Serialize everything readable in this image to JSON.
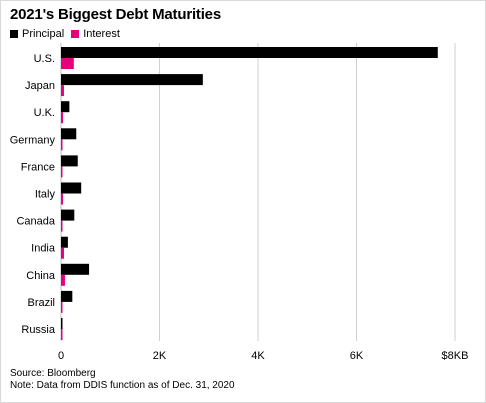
{
  "chart_data": {
    "type": "bar",
    "orientation": "horizontal",
    "title": "2021's Biggest Debt Maturities",
    "categories": [
      "U.S.",
      "Japan",
      "U.K.",
      "Germany",
      "France",
      "Italy",
      "Canada",
      "India",
      "China",
      "Brazil",
      "Russia"
    ],
    "series": [
      {
        "name": "Principal",
        "color": "#000000",
        "values": [
          7650,
          2880,
          170,
          310,
          340,
          410,
          270,
          140,
          570,
          230,
          30
        ]
      },
      {
        "name": "Interest",
        "color": "#e5007d",
        "values": [
          260,
          60,
          40,
          30,
          30,
          40,
          20,
          60,
          80,
          30,
          10
        ]
      }
    ],
    "xlim": [
      0,
      8000
    ],
    "xticks": [
      0,
      2000,
      4000,
      6000,
      8000
    ],
    "xtick_labels": [
      "0",
      "2K",
      "4K",
      "6K",
      "$8KB"
    ],
    "grid": true,
    "legend_position": "top-left"
  },
  "footer": {
    "source": "Source: Bloomberg",
    "note": "Note: Data from DDIS function as of Dec. 31, 2020"
  }
}
